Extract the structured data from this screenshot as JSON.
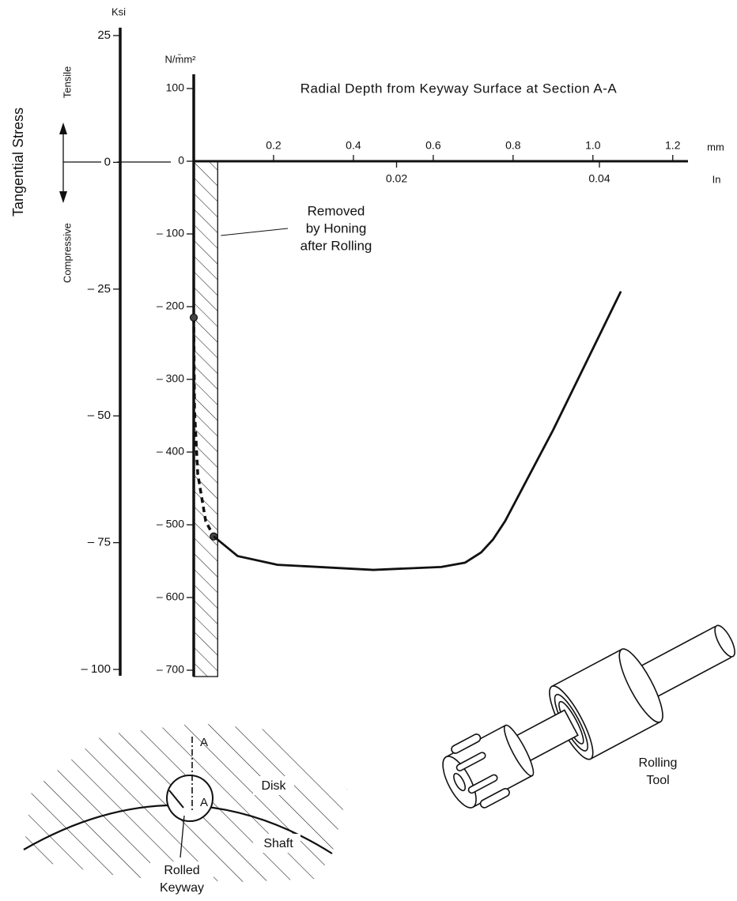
{
  "chart_data": {
    "type": "line",
    "title": "Radial Depth from Keyway Surface at Section A-A",
    "y_axis_title": "Tangential Stress",
    "y_units": "N/m̄m²",
    "y2_units": "Ksi",
    "x_units": "mm",
    "x2_units": "In",
    "direction_labels": {
      "up": "Tensile",
      "down": "Compressive"
    },
    "xlim": [
      0,
      1.25
    ],
    "xticks": [
      0.2,
      0.4,
      0.6,
      0.8,
      {
        "value": 1,
        "label": "1.0"
      },
      1.2
    ],
    "x2lim": [
      0,
      0.0492
    ],
    "x2ticks": [
      0.02,
      0.04
    ],
    "ylim": [
      -700,
      100
    ],
    "yticks": [
      100,
      0,
      {
        "value": -100,
        "label": "– 100"
      },
      {
        "value": -200,
        "label": "– 200"
      },
      {
        "value": -300,
        "label": "– 300"
      },
      {
        "value": -400,
        "label": "– 400"
      },
      {
        "value": -500,
        "label": "– 500"
      },
      {
        "value": -600,
        "label": "– 600"
      },
      {
        "value": -700,
        "label": "– 700"
      }
    ],
    "y2lim": [
      -100,
      25
    ],
    "y2ticks": [
      25,
      0,
      {
        "value": -25,
        "label": "– 25"
      },
      {
        "value": -50,
        "label": "– 50"
      },
      {
        "value": -75,
        "label": "– 75"
      },
      {
        "value": -100,
        "label": "– 100"
      }
    ],
    "band": {
      "x": [
        0,
        0.06
      ],
      "label_lines": [
        "Removed",
        "by Honing",
        "after Rolling"
      ]
    },
    "series": [
      {
        "color": "#111",
        "dash": true,
        "markers": true,
        "x": [
          0,
          0.002,
          0.01,
          0.03,
          0.05
        ],
        "values": [
          -215,
          -342,
          -430,
          -495,
          -516
        ]
      },
      {
        "color": "#111",
        "x": [
          0.05,
          0.11,
          0.21,
          0.45,
          0.62,
          0.68,
          0.72,
          0.75,
          0.78,
          0.9,
          1.07
        ],
        "values": [
          -516,
          -543,
          -555,
          -562,
          -558,
          -552,
          -538,
          -520,
          -495,
          -370,
          -179
        ]
      }
    ]
  },
  "illustration": {
    "section_labels": [
      "A",
      "A"
    ],
    "disk": "Disk",
    "shaft": "Shaft",
    "keyway": [
      "Rolled",
      "Keyway"
    ],
    "tool": [
      "Rolling",
      "Tool"
    ]
  }
}
